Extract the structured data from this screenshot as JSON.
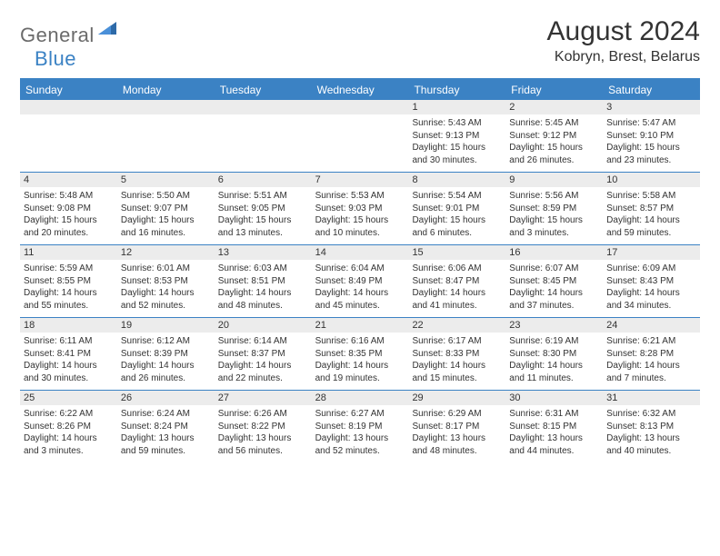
{
  "logo": {
    "word1": "General",
    "word2": "Blue"
  },
  "title": "August 2024",
  "subtitle": "Kobryn, Brest, Belarus",
  "colors": {
    "accent": "#3b82c4",
    "header_text": "#ffffff",
    "daynum_bg": "#ececec",
    "text": "#333333",
    "logo_gray": "#6b6b6b",
    "border": "#3b82c4",
    "background": "#ffffff"
  },
  "fontsizes": {
    "title": 30,
    "subtitle": 16,
    "dayhead": 12,
    "daynum": 11,
    "cell": 10,
    "logo": 22
  },
  "day_names": [
    "Sunday",
    "Monday",
    "Tuesday",
    "Wednesday",
    "Thursday",
    "Friday",
    "Saturday"
  ],
  "weeks": [
    [
      {
        "n": "",
        "sr": "",
        "ss": "",
        "dl": ""
      },
      {
        "n": "",
        "sr": "",
        "ss": "",
        "dl": ""
      },
      {
        "n": "",
        "sr": "",
        "ss": "",
        "dl": ""
      },
      {
        "n": "",
        "sr": "",
        "ss": "",
        "dl": ""
      },
      {
        "n": "1",
        "sr": "Sunrise: 5:43 AM",
        "ss": "Sunset: 9:13 PM",
        "dl": "Daylight: 15 hours and 30 minutes."
      },
      {
        "n": "2",
        "sr": "Sunrise: 5:45 AM",
        "ss": "Sunset: 9:12 PM",
        "dl": "Daylight: 15 hours and 26 minutes."
      },
      {
        "n": "3",
        "sr": "Sunrise: 5:47 AM",
        "ss": "Sunset: 9:10 PM",
        "dl": "Daylight: 15 hours and 23 minutes."
      }
    ],
    [
      {
        "n": "4",
        "sr": "Sunrise: 5:48 AM",
        "ss": "Sunset: 9:08 PM",
        "dl": "Daylight: 15 hours and 20 minutes."
      },
      {
        "n": "5",
        "sr": "Sunrise: 5:50 AM",
        "ss": "Sunset: 9:07 PM",
        "dl": "Daylight: 15 hours and 16 minutes."
      },
      {
        "n": "6",
        "sr": "Sunrise: 5:51 AM",
        "ss": "Sunset: 9:05 PM",
        "dl": "Daylight: 15 hours and 13 minutes."
      },
      {
        "n": "7",
        "sr": "Sunrise: 5:53 AM",
        "ss": "Sunset: 9:03 PM",
        "dl": "Daylight: 15 hours and 10 minutes."
      },
      {
        "n": "8",
        "sr": "Sunrise: 5:54 AM",
        "ss": "Sunset: 9:01 PM",
        "dl": "Daylight: 15 hours and 6 minutes."
      },
      {
        "n": "9",
        "sr": "Sunrise: 5:56 AM",
        "ss": "Sunset: 8:59 PM",
        "dl": "Daylight: 15 hours and 3 minutes."
      },
      {
        "n": "10",
        "sr": "Sunrise: 5:58 AM",
        "ss": "Sunset: 8:57 PM",
        "dl": "Daylight: 14 hours and 59 minutes."
      }
    ],
    [
      {
        "n": "11",
        "sr": "Sunrise: 5:59 AM",
        "ss": "Sunset: 8:55 PM",
        "dl": "Daylight: 14 hours and 55 minutes."
      },
      {
        "n": "12",
        "sr": "Sunrise: 6:01 AM",
        "ss": "Sunset: 8:53 PM",
        "dl": "Daylight: 14 hours and 52 minutes."
      },
      {
        "n": "13",
        "sr": "Sunrise: 6:03 AM",
        "ss": "Sunset: 8:51 PM",
        "dl": "Daylight: 14 hours and 48 minutes."
      },
      {
        "n": "14",
        "sr": "Sunrise: 6:04 AM",
        "ss": "Sunset: 8:49 PM",
        "dl": "Daylight: 14 hours and 45 minutes."
      },
      {
        "n": "15",
        "sr": "Sunrise: 6:06 AM",
        "ss": "Sunset: 8:47 PM",
        "dl": "Daylight: 14 hours and 41 minutes."
      },
      {
        "n": "16",
        "sr": "Sunrise: 6:07 AM",
        "ss": "Sunset: 8:45 PM",
        "dl": "Daylight: 14 hours and 37 minutes."
      },
      {
        "n": "17",
        "sr": "Sunrise: 6:09 AM",
        "ss": "Sunset: 8:43 PM",
        "dl": "Daylight: 14 hours and 34 minutes."
      }
    ],
    [
      {
        "n": "18",
        "sr": "Sunrise: 6:11 AM",
        "ss": "Sunset: 8:41 PM",
        "dl": "Daylight: 14 hours and 30 minutes."
      },
      {
        "n": "19",
        "sr": "Sunrise: 6:12 AM",
        "ss": "Sunset: 8:39 PM",
        "dl": "Daylight: 14 hours and 26 minutes."
      },
      {
        "n": "20",
        "sr": "Sunrise: 6:14 AM",
        "ss": "Sunset: 8:37 PM",
        "dl": "Daylight: 14 hours and 22 minutes."
      },
      {
        "n": "21",
        "sr": "Sunrise: 6:16 AM",
        "ss": "Sunset: 8:35 PM",
        "dl": "Daylight: 14 hours and 19 minutes."
      },
      {
        "n": "22",
        "sr": "Sunrise: 6:17 AM",
        "ss": "Sunset: 8:33 PM",
        "dl": "Daylight: 14 hours and 15 minutes."
      },
      {
        "n": "23",
        "sr": "Sunrise: 6:19 AM",
        "ss": "Sunset: 8:30 PM",
        "dl": "Daylight: 14 hours and 11 minutes."
      },
      {
        "n": "24",
        "sr": "Sunrise: 6:21 AM",
        "ss": "Sunset: 8:28 PM",
        "dl": "Daylight: 14 hours and 7 minutes."
      }
    ],
    [
      {
        "n": "25",
        "sr": "Sunrise: 6:22 AM",
        "ss": "Sunset: 8:26 PM",
        "dl": "Daylight: 14 hours and 3 minutes."
      },
      {
        "n": "26",
        "sr": "Sunrise: 6:24 AM",
        "ss": "Sunset: 8:24 PM",
        "dl": "Daylight: 13 hours and 59 minutes."
      },
      {
        "n": "27",
        "sr": "Sunrise: 6:26 AM",
        "ss": "Sunset: 8:22 PM",
        "dl": "Daylight: 13 hours and 56 minutes."
      },
      {
        "n": "28",
        "sr": "Sunrise: 6:27 AM",
        "ss": "Sunset: 8:19 PM",
        "dl": "Daylight: 13 hours and 52 minutes."
      },
      {
        "n": "29",
        "sr": "Sunrise: 6:29 AM",
        "ss": "Sunset: 8:17 PM",
        "dl": "Daylight: 13 hours and 48 minutes."
      },
      {
        "n": "30",
        "sr": "Sunrise: 6:31 AM",
        "ss": "Sunset: 8:15 PM",
        "dl": "Daylight: 13 hours and 44 minutes."
      },
      {
        "n": "31",
        "sr": "Sunrise: 6:32 AM",
        "ss": "Sunset: 8:13 PM",
        "dl": "Daylight: 13 hours and 40 minutes."
      }
    ]
  ]
}
